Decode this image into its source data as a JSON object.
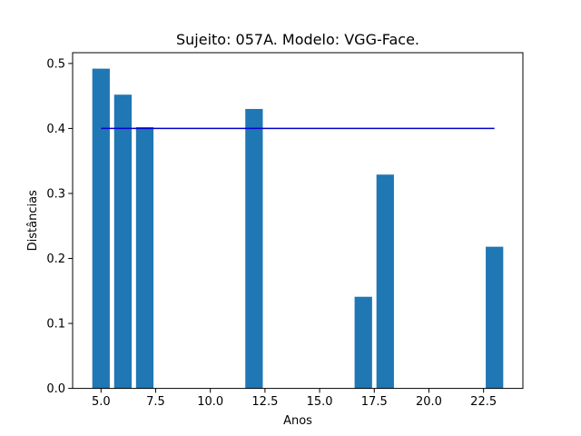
{
  "chart_data": {
    "type": "bar",
    "title": "Sujeito: 057A. Modelo: VGG-Face.",
    "xlabel": "Anos",
    "ylabel": "Distâncias",
    "x": [
      5,
      6,
      7,
      12,
      17,
      18,
      23
    ],
    "values": [
      0.492,
      0.452,
      0.402,
      0.43,
      0.141,
      0.329,
      0.218
    ],
    "bar_width": 0.8,
    "bar_color": "#1f77b4",
    "threshold_line": {
      "x_start": 5,
      "x_end": 23,
      "y": 0.4,
      "color": "#0000cc"
    },
    "xlim": [
      3.7,
      24.3
    ],
    "ylim": [
      0,
      0.5166
    ],
    "xticks": [
      5.0,
      7.5,
      10.0,
      12.5,
      15.0,
      17.5,
      20.0,
      22.5
    ],
    "xtick_labels": [
      "5.0",
      "7.5",
      "10.0",
      "12.5",
      "15.0",
      "17.5",
      "20.0",
      "22.5"
    ],
    "yticks": [
      0.0,
      0.1,
      0.2,
      0.3,
      0.4,
      0.5
    ],
    "ytick_labels": [
      "0.0",
      "0.1",
      "0.2",
      "0.3",
      "0.4",
      "0.5"
    ],
    "grid": false,
    "legend": "none"
  }
}
